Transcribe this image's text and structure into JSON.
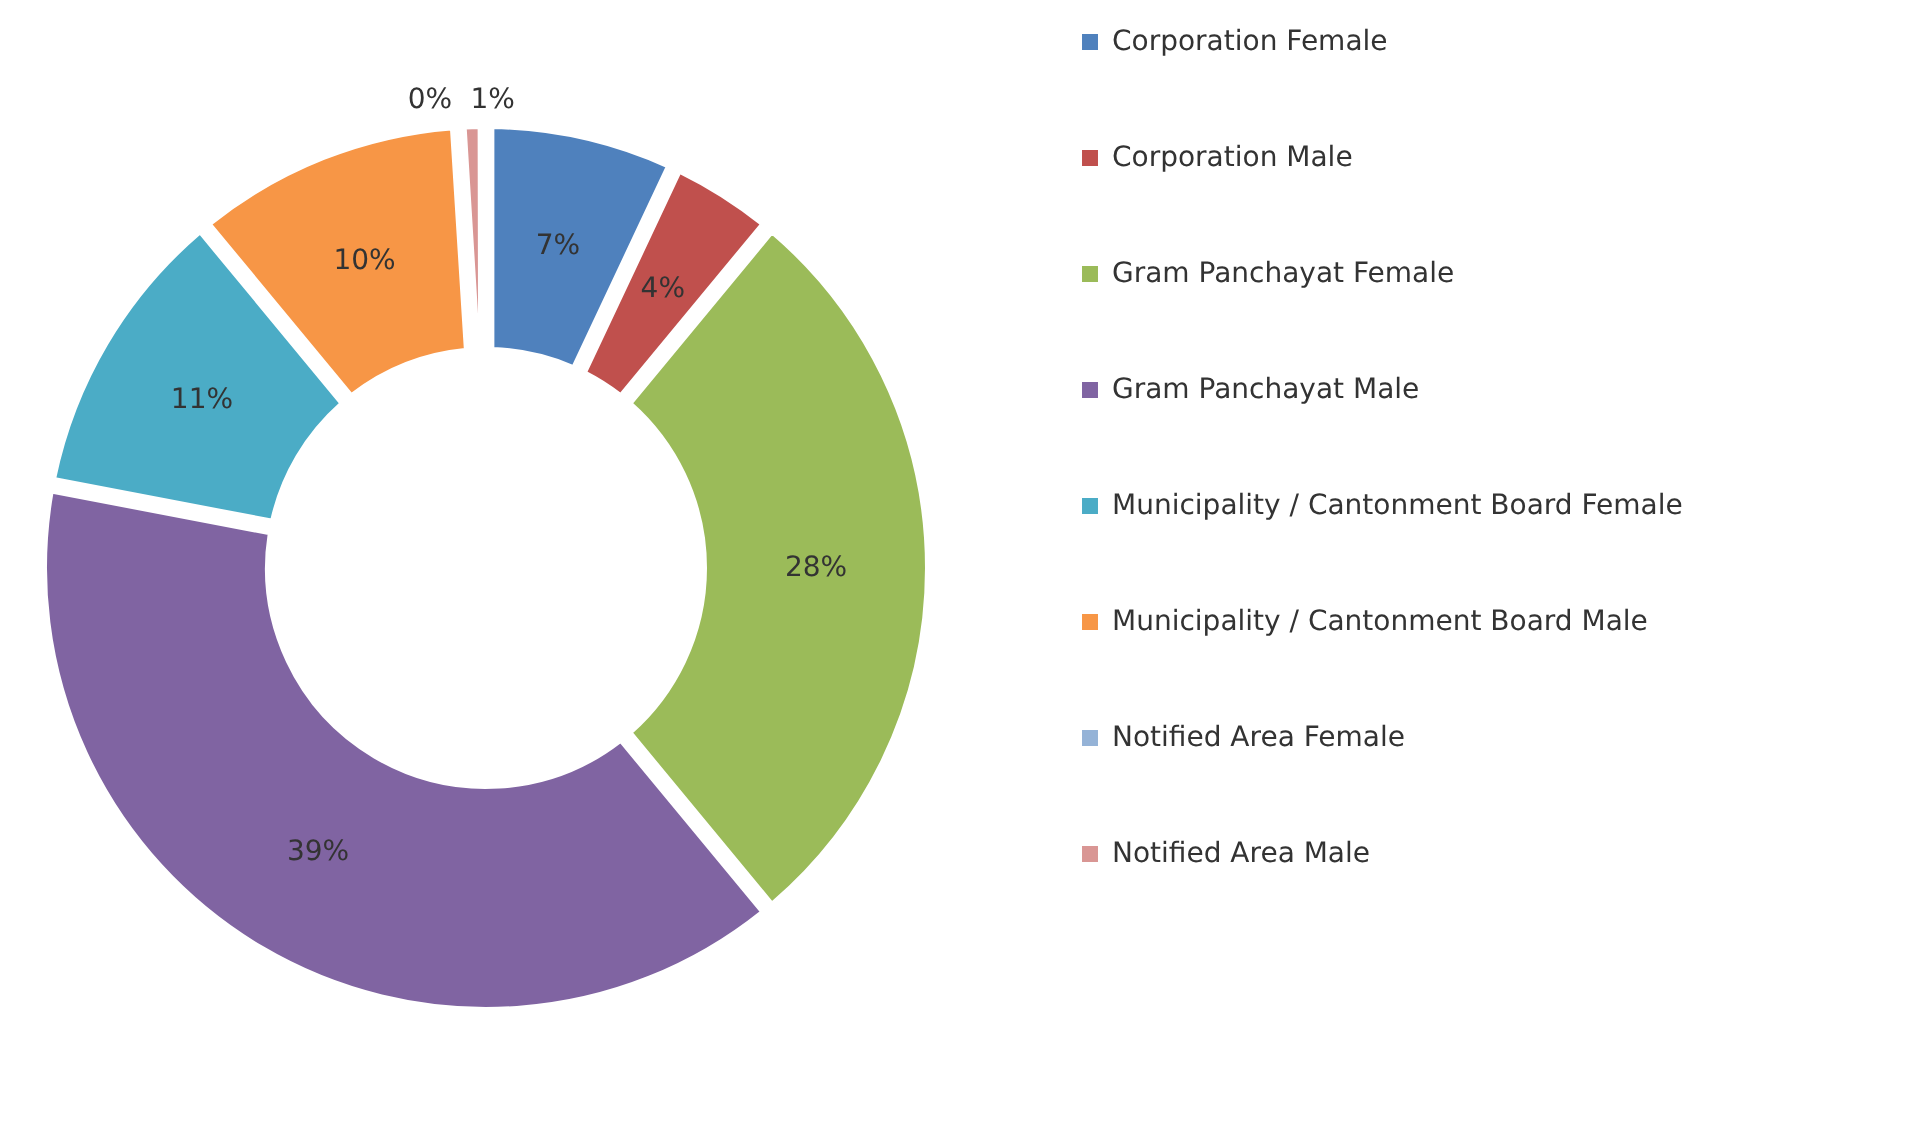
{
  "chart_data": {
    "type": "donut",
    "categories": [
      "Corporation Female",
      "Corporation Male",
      "Gram Panchayat Female",
      "Gram Panchayat Male",
      "Municipality / Cantonment Board Female",
      "Municipality / Cantonment Board Male",
      "Notified Area Female",
      "Notified Area Male"
    ],
    "values": [
      7,
      4,
      28,
      39,
      11,
      10,
      0,
      1
    ],
    "value_labels": [
      "7%",
      "4%",
      "28%",
      "39%",
      "11%",
      "10%",
      "0%",
      "1%"
    ],
    "colors": [
      "#4f81bd",
      "#c0504d",
      "#9bbb59",
      "#8064a2",
      "#4bacc6",
      "#f79646",
      "#95b3d7",
      "#d99694"
    ],
    "legend": "right"
  }
}
